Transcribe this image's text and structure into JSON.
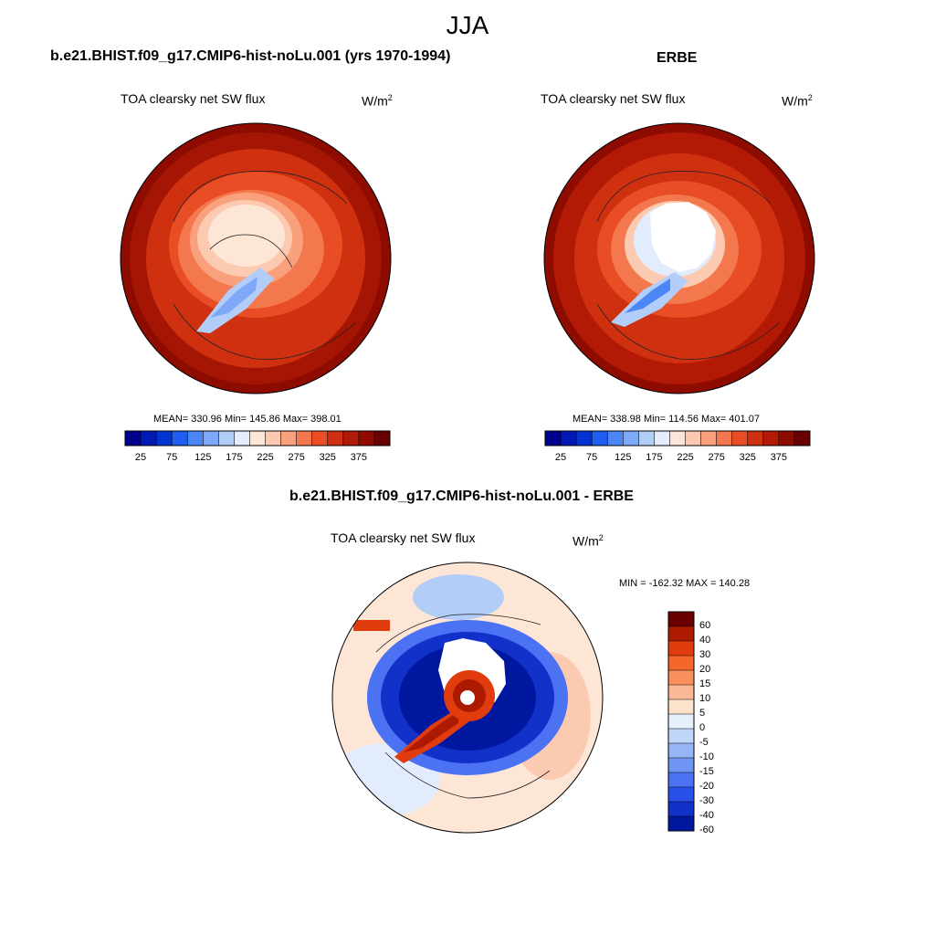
{
  "main_title": "JJA",
  "panels": {
    "model": {
      "heading": "b.e21.BHIST.f09_g17.CMIP6-hist-noLu.001 (yrs 1970-1994)",
      "variable": "TOA clearsky net SW flux",
      "units_base": "W/m",
      "units_exp": "2",
      "stats": "MEAN= 330.96  Min= 145.86  Max= 398.01"
    },
    "obs": {
      "heading": "ERBE",
      "variable": "TOA clearsky net SW flux",
      "units_base": "W/m",
      "units_exp": "2",
      "stats": "MEAN= 338.98  Min= 114.56  Max= 401.07"
    },
    "diff": {
      "heading": "b.e21.BHIST.f09_g17.CMIP6-hist-noLu.001 - ERBE",
      "variable": "TOA clearsky net SW flux",
      "units_base": "W/m",
      "units_exp": "2",
      "stats": "MIN = -162.32 MAX = 140.28"
    }
  },
  "colorbar_abs": {
    "colors": [
      "#00008b",
      "#0019b4",
      "#0033d1",
      "#1f5ef0",
      "#4a86f5",
      "#7fa9f8",
      "#b3cdf9",
      "#e2ecfc",
      "#fde6d6",
      "#fccab0",
      "#f9a17c",
      "#f4784e",
      "#e84d25",
      "#cf3010",
      "#b31a05",
      "#8e0b00",
      "#6b0000"
    ],
    "labels": [
      "25",
      "75",
      "125",
      "175",
      "225",
      "275",
      "325",
      "375"
    ]
  },
  "colorbar_diff": {
    "colors": [
      "#6b0000",
      "#ac1a02",
      "#e03c0e",
      "#f5662a",
      "#f98f5c",
      "#fbb894",
      "#fde3cc",
      "#e6f0fd",
      "#c0d5fa",
      "#95b5f6",
      "#6f95f4",
      "#4a72f2",
      "#2a50ec",
      "#1231c9",
      "#0018a0"
    ],
    "labels": [
      "60",
      "40",
      "30",
      "20",
      "15",
      "10",
      "5",
      "0",
      "-5",
      "-10",
      "-15",
      "-20",
      "-30",
      "-40",
      "-60"
    ]
  }
}
